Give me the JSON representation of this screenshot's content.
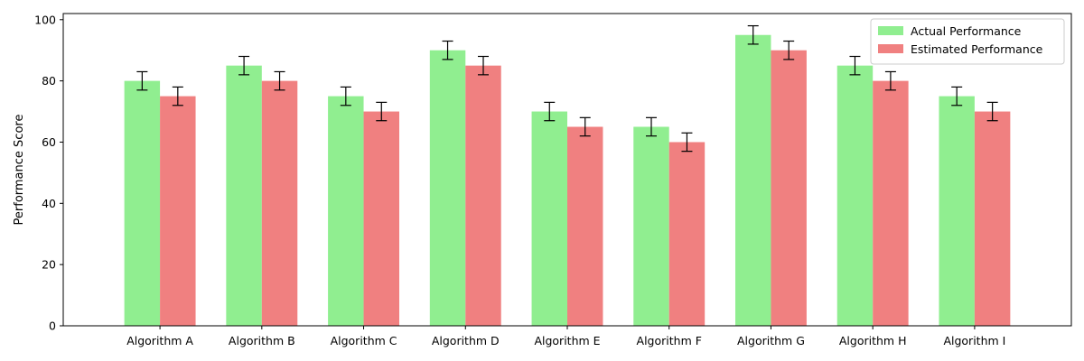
{
  "chart_data": {
    "type": "bar",
    "title": "",
    "xlabel": "",
    "ylabel": "Performance Score",
    "ylim": [
      0,
      102
    ],
    "yticks": [
      0,
      20,
      40,
      60,
      80,
      100
    ],
    "categories": [
      "Algorithm A",
      "Algorithm B",
      "Algorithm C",
      "Algorithm D",
      "Algorithm E",
      "Algorithm F",
      "Algorithm G",
      "Algorithm H",
      "Algorithm I"
    ],
    "series": [
      {
        "name": "Actual Performance",
        "color": "#90ee90",
        "values": [
          80,
          85,
          75,
          90,
          70,
          65,
          95,
          85,
          75
        ],
        "errors": [
          3,
          3,
          3,
          3,
          3,
          3,
          3,
          3,
          3
        ]
      },
      {
        "name": "Estimated Performance",
        "color": "#f08080",
        "values": [
          75,
          80,
          70,
          85,
          65,
          60,
          90,
          80,
          70
        ],
        "errors": [
          3,
          3,
          3,
          3,
          3,
          3,
          3,
          3,
          3
        ]
      }
    ],
    "grid": false,
    "legend_position": "top-right"
  }
}
